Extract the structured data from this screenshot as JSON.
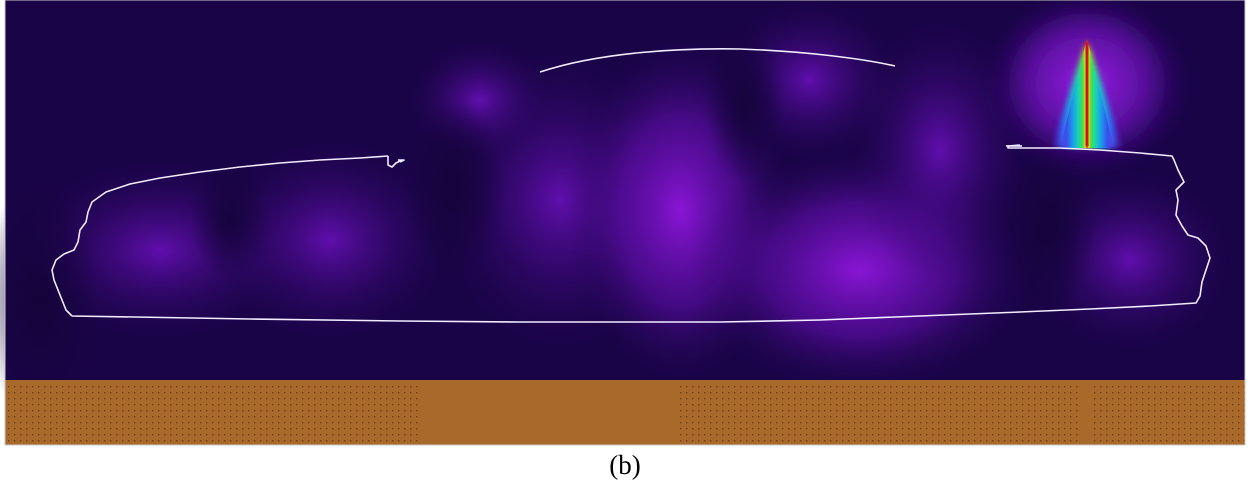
{
  "figure": {
    "caption": "(b)"
  },
  "colors": {
    "field_background": "#1a0448",
    "field_purple": "#8a12d6",
    "source_red": "#d2141c",
    "outline": "#f2ecff",
    "ground": "#a8692a",
    "ground_dots": "#6b3d16"
  }
}
